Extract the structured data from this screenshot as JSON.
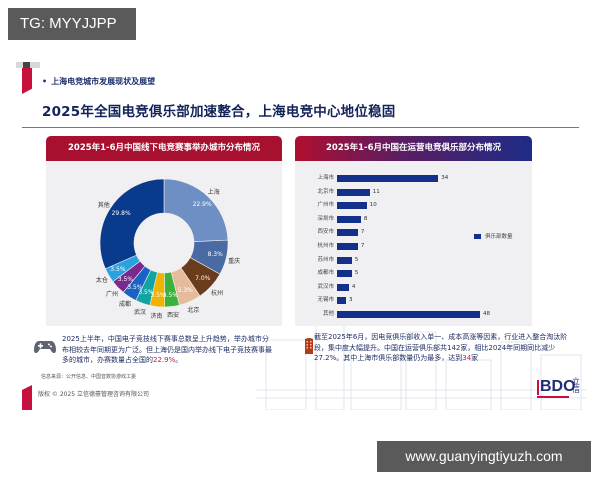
{
  "overlay": {
    "tg_label": "TG: MYYJJPP",
    "url_label": "www.guanyingtiyuzh.com"
  },
  "slide": {
    "section_label": "上海电竞城市发展现状及展望",
    "title": "2025年全国电竞俱乐部加速整合，上海电竞中心地位稳固",
    "left_note": {
      "text_before": "2025上半年，中国电子竞技线下赛事总数呈上升趋势，举办城市分布相较去年同期更为广泛。但上海仍是国内举办线下电子竞技赛事最多的城市，办赛数量占全国的",
      "highlight": "22.9%",
      "text_after": "。"
    },
    "right_note": {
      "text_before": "截至2025年6月，因电竞俱乐部收入单一、成本高涨等因素，行业进入整合淘汰阶段，集中度大幅提升。中国在运营俱乐部共142家，相比2024年同期同比减少27.2%。其中上海市俱乐部数量仍为最多，达到",
      "highlight": "34",
      "text_after": "家"
    },
    "source": "信息来源：公开信息、中国音数协游戏工委",
    "copyright": "版权 © 2025 立信德豪管理咨询有限公司",
    "logo": {
      "text": "BDO",
      "cn": "立信"
    },
    "colors": {
      "accent_red": "#c8103e",
      "navy": "#13235a",
      "bar_blue": "#13318a"
    }
  },
  "chart_data": [
    {
      "type": "pie",
      "title": "2025年1-6月中国线下电竞赛事举办城市分布情况",
      "donut": true,
      "categories": [
        "上海",
        "重庆",
        "杭州",
        "北京",
        "西安",
        "济南",
        "武汉",
        "成都",
        "广州",
        "太仓",
        "其他"
      ],
      "values": [
        22.9,
        8.3,
        7.0,
        5.3,
        3.5,
        3.5,
        3.5,
        3.5,
        3.5,
        3.5,
        29.8
      ],
      "labels": [
        "22.9%",
        "8.3%",
        "7.0%",
        "5.3%",
        "3.5%",
        "3.5%",
        "3.5%",
        "3.5%",
        "3.5%",
        "3.5%",
        "29.8%"
      ],
      "colors": [
        "#6d8fc3",
        "#4a6aa3",
        "#6b3c1c",
        "#e6bb9c",
        "#3bb33b",
        "#f0b400",
        "#12a3a3",
        "#1a62c6",
        "#7a2a8e",
        "#2aa2e0",
        "#0a3a8c"
      ]
    },
    {
      "type": "bar",
      "orientation": "horizontal",
      "title": "2025年1-6月中国在运营电竞俱乐部分布情况",
      "categories": [
        "上海市",
        "北京市",
        "广州市",
        "深圳市",
        "西安市",
        "杭州市",
        "苏州市",
        "成都市",
        "武汉市",
        "无锡市",
        "其他"
      ],
      "series": [
        {
          "name": "俱乐部数量",
          "values": [
            34,
            11,
            10,
            8,
            7,
            7,
            5,
            5,
            4,
            3,
            48
          ]
        }
      ],
      "legend": "right"
    }
  ]
}
